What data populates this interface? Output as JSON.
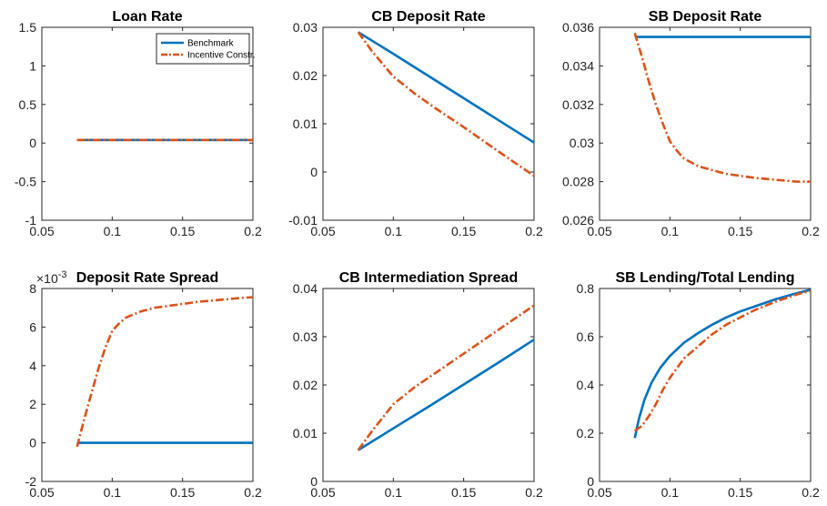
{
  "colors": {
    "benchmark": "#0072BD",
    "incentive": "#D95319",
    "axis": "#262626"
  },
  "legend": {
    "location": "top-right of first panel",
    "entries": [
      {
        "label": "Benchmark",
        "style": "solid",
        "color": "#0072BD"
      },
      {
        "label": "Incentive Constr.",
        "style": "dash-dot",
        "color": "#D95319"
      }
    ]
  },
  "chart_data": [
    {
      "type": "line",
      "title": "Loan Rate",
      "xlim": [
        0.05,
        0.2
      ],
      "ylim": [
        -1,
        1.5
      ],
      "xticks": [
        0.05,
        0.1,
        0.15,
        0.2
      ],
      "xtick_labels": [
        "0.05",
        "0.1",
        "0.15",
        "0.2"
      ],
      "yticks": [
        -1,
        -0.5,
        0,
        0.5,
        1,
        1.5
      ],
      "ytick_labels": [
        "-1",
        "-0.5",
        "0",
        "0.5",
        "1",
        "1.5"
      ],
      "series": [
        {
          "name": "Benchmark",
          "x": [
            0.075,
            0.1,
            0.125,
            0.15,
            0.175,
            0.2
          ],
          "y": [
            0.04,
            0.04,
            0.04,
            0.04,
            0.04,
            0.04
          ]
        },
        {
          "name": "Incentive Constr.",
          "x": [
            0.075,
            0.1,
            0.125,
            0.15,
            0.175,
            0.2
          ],
          "y": [
            0.04,
            0.04,
            0.04,
            0.04,
            0.04,
            0.04
          ]
        }
      ]
    },
    {
      "type": "line",
      "title": "CB Deposit Rate",
      "xlim": [
        0.05,
        0.2
      ],
      "ylim": [
        -0.01,
        0.03
      ],
      "xticks": [
        0.05,
        0.1,
        0.15,
        0.2
      ],
      "xtick_labels": [
        "0.05",
        "0.1",
        "0.15",
        "0.2"
      ],
      "yticks": [
        -0.01,
        0,
        0.01,
        0.02,
        0.03
      ],
      "ytick_labels": [
        "-0.01",
        "0",
        "0.01",
        "0.02",
        "0.03"
      ],
      "series": [
        {
          "name": "Benchmark",
          "x": [
            0.075,
            0.1,
            0.125,
            0.15,
            0.175,
            0.2
          ],
          "y": [
            0.029,
            0.0245,
            0.0199,
            0.0153,
            0.0107,
            0.0061
          ]
        },
        {
          "name": "Incentive Constr.",
          "x": [
            0.075,
            0.085,
            0.1,
            0.115,
            0.13,
            0.15,
            0.175,
            0.2
          ],
          "y": [
            0.029,
            0.025,
            0.0198,
            0.0163,
            0.0132,
            0.0093,
            0.0042,
            -0.0008
          ]
        }
      ]
    },
    {
      "type": "line",
      "title": "SB Deposit Rate",
      "xlim": [
        0.05,
        0.2
      ],
      "ylim": [
        0.026,
        0.036
      ],
      "xticks": [
        0.05,
        0.1,
        0.15,
        0.2
      ],
      "xtick_labels": [
        "0.05",
        "0.1",
        "0.15",
        "0.2"
      ],
      "yticks": [
        0.026,
        0.028,
        0.03,
        0.032,
        0.034,
        0.036
      ],
      "ytick_labels": [
        "0.026",
        "0.028",
        "0.03",
        "0.032",
        "0.034",
        "0.036"
      ],
      "series": [
        {
          "name": "Benchmark",
          "x": [
            0.075,
            0.1,
            0.125,
            0.15,
            0.175,
            0.2
          ],
          "y": [
            0.0355,
            0.0355,
            0.0355,
            0.0355,
            0.0355,
            0.0355
          ]
        },
        {
          "name": "Incentive Constr.",
          "x": [
            0.075,
            0.08,
            0.085,
            0.09,
            0.095,
            0.1,
            0.105,
            0.11,
            0.12,
            0.13,
            0.14,
            0.15,
            0.16,
            0.175,
            0.19,
            0.2
          ],
          "y": [
            0.0357,
            0.0345,
            0.0332,
            0.032,
            0.031,
            0.0301,
            0.0296,
            0.0292,
            0.0288,
            0.0286,
            0.0284,
            0.0283,
            0.0282,
            0.0281,
            0.028,
            0.028
          ]
        }
      ]
    },
    {
      "type": "line",
      "title": "Deposit Rate Spread",
      "y_exponent_label": "×10",
      "y_exponent_power": "-3",
      "xlim": [
        0.05,
        0.2
      ],
      "ylim": [
        -2,
        8
      ],
      "xticks": [
        0.05,
        0.1,
        0.15,
        0.2
      ],
      "xtick_labels": [
        "0.05",
        "0.1",
        "0.15",
        "0.2"
      ],
      "yticks": [
        -2,
        0,
        2,
        4,
        6,
        8
      ],
      "ytick_labels": [
        "-2",
        "0",
        "2",
        "4",
        "6",
        "8"
      ],
      "series": [
        {
          "name": "Benchmark",
          "x": [
            0.075,
            0.1,
            0.125,
            0.15,
            0.175,
            0.2
          ],
          "y": [
            0,
            0,
            0,
            0,
            0,
            0
          ]
        },
        {
          "name": "Incentive Constr.",
          "x": [
            0.075,
            0.08,
            0.085,
            0.09,
            0.095,
            0.1,
            0.105,
            0.11,
            0.12,
            0.13,
            0.14,
            0.15,
            0.16,
            0.175,
            0.19,
            0.2
          ],
          "y": [
            -0.2,
            1.2,
            2.5,
            3.8,
            4.9,
            5.8,
            6.2,
            6.5,
            6.8,
            7.0,
            7.1,
            7.2,
            7.3,
            7.4,
            7.5,
            7.55
          ]
        }
      ]
    },
    {
      "type": "line",
      "title": "CB Intermediation Spread",
      "xlim": [
        0.05,
        0.2
      ],
      "ylim": [
        0,
        0.04
      ],
      "xticks": [
        0.05,
        0.1,
        0.15,
        0.2
      ],
      "xtick_labels": [
        "0.05",
        "0.1",
        "0.15",
        "0.2"
      ],
      "yticks": [
        0,
        0.01,
        0.02,
        0.03,
        0.04
      ],
      "ytick_labels": [
        "0",
        "0.01",
        "0.02",
        "0.03",
        "0.04"
      ],
      "series": [
        {
          "name": "Benchmark",
          "x": [
            0.075,
            0.1,
            0.125,
            0.15,
            0.175,
            0.2
          ],
          "y": [
            0.0065,
            0.011,
            0.0155,
            0.0201,
            0.0247,
            0.0294
          ]
        },
        {
          "name": "Incentive Constr.",
          "x": [
            0.075,
            0.085,
            0.1,
            0.115,
            0.13,
            0.15,
            0.175,
            0.2
          ],
          "y": [
            0.0065,
            0.0105,
            0.016,
            0.0195,
            0.0225,
            0.0265,
            0.0315,
            0.0365
          ]
        }
      ]
    },
    {
      "type": "line",
      "title": "SB Lending/Total Lending",
      "xlim": [
        0.05,
        0.2
      ],
      "ylim": [
        0,
        0.8
      ],
      "xticks": [
        0.05,
        0.1,
        0.15,
        0.2
      ],
      "xtick_labels": [
        "0.05",
        "0.1",
        "0.15",
        "0.2"
      ],
      "yticks": [
        0,
        0.2,
        0.4,
        0.6,
        0.8
      ],
      "ytick_labels": [
        "0",
        "0.2",
        "0.4",
        "0.6",
        "0.8"
      ],
      "series": [
        {
          "name": "Benchmark",
          "x": [
            0.075,
            0.078,
            0.082,
            0.087,
            0.093,
            0.1,
            0.11,
            0.12,
            0.13,
            0.14,
            0.15,
            0.16,
            0.175,
            0.19,
            0.2
          ],
          "y": [
            0.18,
            0.26,
            0.34,
            0.41,
            0.47,
            0.52,
            0.575,
            0.615,
            0.65,
            0.68,
            0.705,
            0.725,
            0.755,
            0.78,
            0.795
          ]
        },
        {
          "name": "Incentive Constr.",
          "x": [
            0.075,
            0.08,
            0.085,
            0.09,
            0.095,
            0.1,
            0.105,
            0.11,
            0.12,
            0.13,
            0.14,
            0.15,
            0.16,
            0.175,
            0.19,
            0.2
          ],
          "y": [
            0.21,
            0.23,
            0.27,
            0.32,
            0.38,
            0.43,
            0.47,
            0.51,
            0.56,
            0.61,
            0.65,
            0.68,
            0.71,
            0.745,
            0.775,
            0.79
          ]
        }
      ]
    }
  ]
}
